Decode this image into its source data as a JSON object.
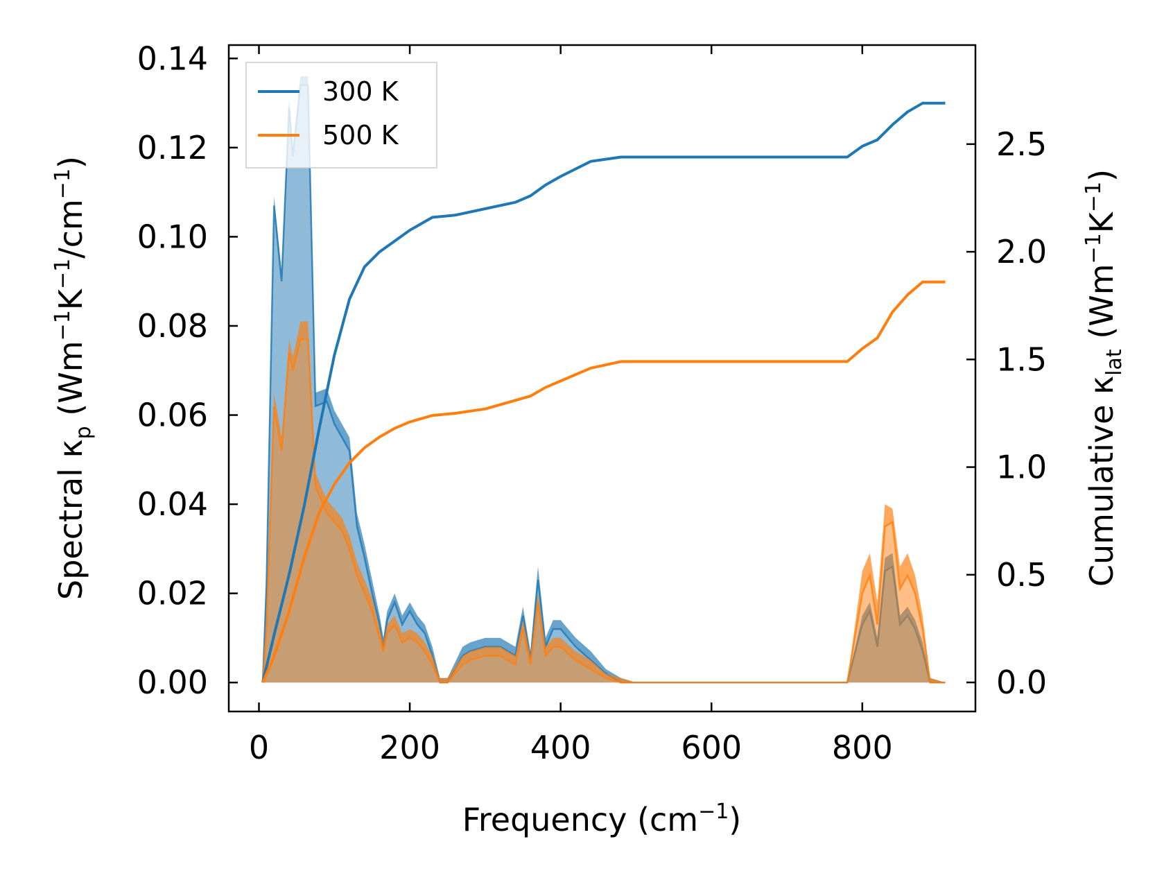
{
  "chart_data": {
    "type": "area",
    "xlabel": {
      "base": "Frequency (cm",
      "sup": "−1",
      "tail": ")"
    },
    "ylabel_left": {
      "parts": [
        {
          "t": "Spectral κ"
        },
        {
          "t": "p",
          "sub": true
        },
        {
          "t": " (Wm"
        },
        {
          "t": "−1",
          "sup": true
        },
        {
          "t": "K"
        },
        {
          "t": "−1",
          "sup": true
        },
        {
          "t": "/cm"
        },
        {
          "t": "−1",
          "sup": true
        },
        {
          "t": ")"
        }
      ]
    },
    "ylabel_right": {
      "parts": [
        {
          "t": "Cumulative κ"
        },
        {
          "t": "lat",
          "sub": true
        },
        {
          "t": " (Wm"
        },
        {
          "t": "−1",
          "sup": true
        },
        {
          "t": "K"
        },
        {
          "t": "−1",
          "sup": true
        },
        {
          "t": ")"
        }
      ]
    },
    "xlim": [
      -40,
      950
    ],
    "ylim_left": [
      -0.0065,
      0.143
    ],
    "ylim_right": [
      -0.135,
      2.96
    ],
    "x_ticks": [
      0,
      200,
      400,
      600,
      800
    ],
    "x_tick_labels": [
      "0",
      "200",
      "400",
      "600",
      "800"
    ],
    "y_left_ticks": [
      0,
      0.02,
      0.04,
      0.06,
      0.08,
      0.1,
      0.12,
      0.14
    ],
    "y_left_tick_labels": [
      "0.00",
      "0.02",
      "0.04",
      "0.06",
      "0.08",
      "0.10",
      "0.12",
      "0.14"
    ],
    "y_right_ticks": [
      0,
      0.5,
      1.0,
      1.5,
      2.0,
      2.5
    ],
    "y_right_tick_labels": [
      "0.0",
      "0.5",
      "1.0",
      "1.5",
      "2.0",
      "2.5"
    ],
    "legend": {
      "position": "upper left",
      "entries": [
        "300 K",
        "500 K"
      ]
    },
    "colors": {
      "300K": "#1f77b4",
      "500K": "#ff7f0e"
    },
    "spectral_300K_band": {
      "x": [
        5,
        10,
        20,
        30,
        40,
        45,
        55,
        65,
        75,
        90,
        100,
        110,
        120,
        130,
        140,
        150,
        160,
        165,
        170,
        180,
        190,
        200,
        210,
        220,
        230,
        240,
        250,
        270,
        280,
        300,
        320,
        340,
        350,
        360,
        370,
        380,
        390,
        400,
        420,
        440,
        460,
        480,
        500,
        780,
        800,
        810,
        820,
        830,
        840,
        850,
        860,
        870,
        880,
        890,
        910
      ],
      "lower": [
        0,
        0.022,
        0.107,
        0.09,
        0.129,
        0.118,
        0.134,
        0.134,
        0.062,
        0.063,
        0.058,
        0.055,
        0.052,
        0.035,
        0.028,
        0.02,
        0.013,
        0.008,
        0.014,
        0.018,
        0.013,
        0.016,
        0.013,
        0.011,
        0.006,
        0.0,
        0.0,
        0.006,
        0.007,
        0.008,
        0.008,
        0.006,
        0.015,
        0.005,
        0.023,
        0.008,
        0.012,
        0.012,
        0.008,
        0.005,
        0.002,
        0.0,
        0.0,
        0.0,
        0.013,
        0.016,
        0.008,
        0.025,
        0.026,
        0.013,
        0.015,
        0.012,
        0.007,
        0.0,
        0.0
      ],
      "upper": [
        0,
        0.025,
        0.109,
        0.092,
        0.131,
        0.12,
        0.136,
        0.136,
        0.065,
        0.066,
        0.061,
        0.058,
        0.055,
        0.038,
        0.031,
        0.023,
        0.015,
        0.01,
        0.016,
        0.02,
        0.015,
        0.018,
        0.015,
        0.013,
        0.008,
        0.001,
        0.001,
        0.008,
        0.009,
        0.01,
        0.01,
        0.008,
        0.017,
        0.007,
        0.026,
        0.01,
        0.014,
        0.014,
        0.01,
        0.007,
        0.003,
        0.001,
        0.0,
        0.0,
        0.015,
        0.018,
        0.01,
        0.028,
        0.029,
        0.015,
        0.017,
        0.014,
        0.009,
        0.001,
        0.0
      ]
    },
    "spectral_500K_band": {
      "x": [
        5,
        10,
        20,
        30,
        40,
        45,
        55,
        65,
        75,
        90,
        100,
        110,
        120,
        130,
        140,
        150,
        160,
        165,
        170,
        180,
        190,
        200,
        210,
        220,
        230,
        240,
        250,
        270,
        280,
        300,
        320,
        340,
        350,
        360,
        370,
        380,
        390,
        400,
        420,
        440,
        460,
        480,
        500,
        780,
        800,
        810,
        820,
        830,
        840,
        850,
        860,
        870,
        880,
        890,
        910
      ],
      "lower": [
        0,
        0.012,
        0.062,
        0.052,
        0.074,
        0.07,
        0.077,
        0.077,
        0.044,
        0.038,
        0.036,
        0.034,
        0.03,
        0.024,
        0.02,
        0.016,
        0.01,
        0.007,
        0.011,
        0.013,
        0.009,
        0.01,
        0.009,
        0.007,
        0.004,
        0.0,
        0.0,
        0.004,
        0.005,
        0.006,
        0.006,
        0.004,
        0.012,
        0.004,
        0.018,
        0.006,
        0.008,
        0.008,
        0.005,
        0.003,
        0.001,
        0.0,
        0.0,
        0.0,
        0.02,
        0.024,
        0.013,
        0.035,
        0.036,
        0.021,
        0.024,
        0.02,
        0.012,
        0.0,
        0.0
      ],
      "upper": [
        0,
        0.015,
        0.065,
        0.055,
        0.077,
        0.073,
        0.081,
        0.081,
        0.047,
        0.041,
        0.039,
        0.037,
        0.033,
        0.027,
        0.023,
        0.019,
        0.012,
        0.009,
        0.013,
        0.015,
        0.011,
        0.012,
        0.011,
        0.009,
        0.006,
        0.001,
        0.001,
        0.006,
        0.007,
        0.008,
        0.008,
        0.006,
        0.014,
        0.006,
        0.02,
        0.008,
        0.01,
        0.01,
        0.007,
        0.005,
        0.002,
        0.001,
        0.0,
        0.0,
        0.025,
        0.029,
        0.018,
        0.04,
        0.039,
        0.026,
        0.029,
        0.024,
        0.015,
        0.001,
        0.0
      ]
    },
    "cumulative": [
      {
        "name": "300 K",
        "x": [
          5,
          20,
          40,
          60,
          80,
          100,
          120,
          140,
          160,
          180,
          200,
          230,
          260,
          300,
          340,
          360,
          380,
          400,
          440,
          480,
          780,
          800,
          820,
          840,
          860,
          880,
          910
        ],
        "y": [
          0,
          0.22,
          0.5,
          0.82,
          1.18,
          1.52,
          1.78,
          1.93,
          2.0,
          2.05,
          2.1,
          2.16,
          2.17,
          2.2,
          2.23,
          2.26,
          2.31,
          2.35,
          2.42,
          2.44,
          2.44,
          2.49,
          2.52,
          2.59,
          2.65,
          2.69,
          2.69
        ]
      },
      {
        "name": "500 K",
        "x": [
          5,
          20,
          40,
          60,
          80,
          100,
          120,
          140,
          160,
          180,
          200,
          230,
          260,
          300,
          340,
          360,
          380,
          400,
          440,
          480,
          780,
          800,
          820,
          840,
          860,
          880,
          910
        ],
        "y": [
          0,
          0.12,
          0.33,
          0.58,
          0.79,
          0.92,
          1.02,
          1.09,
          1.14,
          1.18,
          1.21,
          1.24,
          1.25,
          1.27,
          1.31,
          1.33,
          1.37,
          1.4,
          1.46,
          1.49,
          1.49,
          1.55,
          1.6,
          1.72,
          1.8,
          1.86,
          1.86
        ]
      }
    ]
  }
}
